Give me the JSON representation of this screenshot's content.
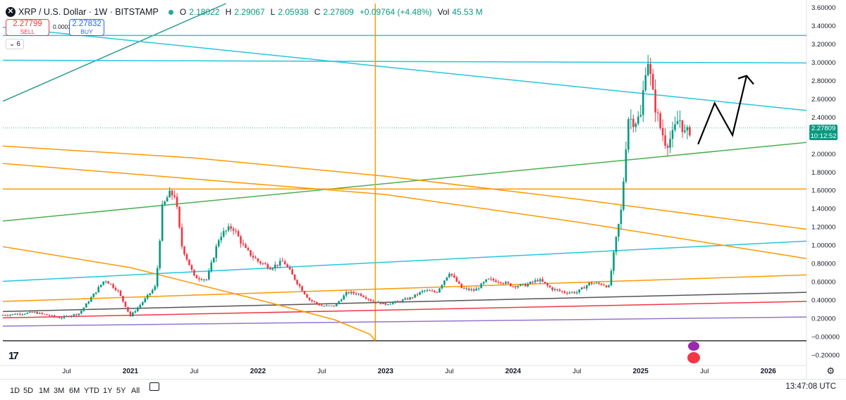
{
  "header": {
    "symbol_icon": "x-logo-icon",
    "title": "XRP / U.S. Dollar · 1W · BITSTAMP",
    "status_color": "#26a69a",
    "o_label": "O",
    "o_value": "2.18022",
    "h_label": "H",
    "h_value": "2.29067",
    "l_label": "L",
    "l_value": "2.05938",
    "c_label": "C",
    "c_value": "2.27809",
    "change": "+0.09764 (+4.48%)",
    "vol_label": "Vol",
    "vol_value": "45.53 M"
  },
  "trade": {
    "sell_price": "2.27799",
    "sell_label": "SELL",
    "spread": "0.00033",
    "buy_price": "2.27832",
    "buy_label": "BUY"
  },
  "indicators_toggle": "6",
  "current_price": {
    "value": "2.27809",
    "countdown": "10:12:52",
    "color": "#089981"
  },
  "toolbar": {
    "timeframes": [
      "1D",
      "5D",
      "1M",
      "3M",
      "6M",
      "YTD",
      "1Y",
      "5Y",
      "All"
    ],
    "clock": "13:47:08 UTC"
  },
  "chart_data": {
    "type": "line",
    "title": "",
    "y_axis": {
      "ylim": [
        -0.29,
        3.64
      ],
      "ticks": [
        "3.60000",
        "3.40000",
        "3.20000",
        "3.00000",
        "2.80000",
        "2.60000",
        "2.40000",
        "2.20000",
        "2.00000",
        "1.80000",
        "1.60000",
        "1.40000",
        "1.20000",
        "1.00000",
        "0.80000",
        "0.60000",
        "0.40000",
        "0.20000",
        "−0.00000",
        "−0.20000"
      ],
      "tick_values": [
        3.6,
        3.4,
        3.2,
        3.0,
        2.8,
        2.6,
        2.4,
        2.2,
        2.0,
        1.8,
        1.6,
        1.4,
        1.2,
        1.0,
        0.8,
        0.6,
        0.4,
        0.2,
        0.0,
        -0.2
      ]
    },
    "x_axis": {
      "xlim": [
        2020.0,
        2026.3
      ],
      "ticks": [
        "Jul",
        "2021",
        "Jul",
        "2022",
        "Jul",
        "2023",
        "Jul",
        "2024",
        "Jul",
        "2025",
        "Jul",
        "2026"
      ],
      "tick_values": [
        2020.5,
        2021.0,
        2021.5,
        2022.0,
        2022.5,
        2023.0,
        2023.5,
        2024.0,
        2024.5,
        2025.0,
        2025.5,
        2026.0
      ]
    },
    "candles": {
      "up_color": "#089981",
      "down_color": "#f23645",
      "close_path": [
        [
          2020.0,
          0.23
        ],
        [
          2020.25,
          0.26
        ],
        [
          2020.45,
          0.2
        ],
        [
          2020.6,
          0.25
        ],
        [
          2020.8,
          0.62
        ],
        [
          2020.9,
          0.5
        ],
        [
          2021.0,
          0.22
        ],
        [
          2021.1,
          0.38
        ],
        [
          2021.2,
          0.55
        ],
        [
          2021.25,
          1.4
        ],
        [
          2021.3,
          1.55
        ],
        [
          2021.35,
          1.55
        ],
        [
          2021.4,
          1.0
        ],
        [
          2021.5,
          0.65
        ],
        [
          2021.6,
          0.62
        ],
        [
          2021.7,
          1.1
        ],
        [
          2021.8,
          1.2
        ],
        [
          2021.9,
          0.95
        ],
        [
          2022.0,
          0.82
        ],
        [
          2022.1,
          0.75
        ],
        [
          2022.2,
          0.82
        ],
        [
          2022.3,
          0.6
        ],
        [
          2022.4,
          0.4
        ],
        [
          2022.5,
          0.33
        ],
        [
          2022.6,
          0.33
        ],
        [
          2022.7,
          0.48
        ],
        [
          2022.8,
          0.46
        ],
        [
          2022.9,
          0.38
        ],
        [
          2023.0,
          0.35
        ],
        [
          2023.1,
          0.38
        ],
        [
          2023.2,
          0.42
        ],
        [
          2023.3,
          0.5
        ],
        [
          2023.4,
          0.48
        ],
        [
          2023.5,
          0.7
        ],
        [
          2023.6,
          0.52
        ],
        [
          2023.7,
          0.5
        ],
        [
          2023.8,
          0.62
        ],
        [
          2023.9,
          0.6
        ],
        [
          2024.0,
          0.55
        ],
        [
          2024.1,
          0.56
        ],
        [
          2024.2,
          0.62
        ],
        [
          2024.3,
          0.52
        ],
        [
          2024.4,
          0.48
        ],
        [
          2024.5,
          0.48
        ],
        [
          2024.6,
          0.58
        ],
        [
          2024.7,
          0.57
        ],
        [
          2024.75,
          0.54
        ],
        [
          2024.8,
          1.0
        ],
        [
          2024.85,
          1.4
        ],
        [
          2024.9,
          2.4
        ],
        [
          2024.95,
          2.35
        ],
        [
          2025.0,
          2.4
        ],
        [
          2025.05,
          3.1
        ],
        [
          2025.1,
          2.6
        ],
        [
          2025.15,
          2.3
        ],
        [
          2025.2,
          2.1
        ],
        [
          2025.25,
          2.2
        ],
        [
          2025.3,
          2.4
        ],
        [
          2025.35,
          2.2
        ],
        [
          2025.4,
          2.28
        ]
      ]
    },
    "lines": [
      {
        "color": "#2a9d8f",
        "x1": 2020.0,
        "y1": 2.57,
        "x2": 2021.75,
        "y2": 3.64
      },
      {
        "color": "#26c6da",
        "x1": 2020.0,
        "y1": 3.38,
        "x2": 2026.3,
        "y2": 2.47
      },
      {
        "color": "#26c6da",
        "x1": 2020.0,
        "y1": 3.02,
        "x2": 2026.3,
        "y2": 2.99
      },
      {
        "color": "#26c6da",
        "x1": 2020.0,
        "y1": 3.29,
        "x2": 2026.3,
        "y2": 3.29
      },
      {
        "color": "#26c6da",
        "x1": 2020.0,
        "y1": 0.6,
        "x2": 2026.3,
        "y2": 1.04
      },
      {
        "color": "#4caf50",
        "x1": 2020.0,
        "y1": 1.26,
        "x2": 2026.3,
        "y2": 2.12
      },
      {
        "color": "#ff9800",
        "x1": 2020.0,
        "y1": 1.61,
        "x2": 2026.3,
        "y2": 1.61
      },
      {
        "color": "#ff9800",
        "x1": 2020.0,
        "y1": 0.38,
        "x2": 2026.3,
        "y2": 0.67
      },
      {
        "color": "#ff9800",
        "x1": 2022.92,
        "y1": 3.64,
        "x2": 2022.92,
        "y2": -0.05
      },
      {
        "color": "#555555",
        "x1": 2020.0,
        "y1": 0.27,
        "x2": 2026.3,
        "y2": 0.48
      },
      {
        "color": "#f23645",
        "x1": 2020.0,
        "y1": 0.2,
        "x2": 2026.3,
        "y2": 0.38
      },
      {
        "color": "#9575cd",
        "x1": 2020.0,
        "y1": 0.11,
        "x2": 2026.3,
        "y2": 0.21
      },
      {
        "color": "#333333",
        "x1": 2020.0,
        "y1": -0.05,
        "x2": 2026.3,
        "y2": -0.05
      }
    ],
    "curves": [
      {
        "color": "#ff9800",
        "points": [
          [
            2020.0,
            2.08
          ],
          [
            2021.5,
            1.95
          ],
          [
            2023.0,
            1.75
          ],
          [
            2024.5,
            1.5
          ],
          [
            2026.3,
            1.17
          ]
        ]
      },
      {
        "color": "#ff9800",
        "points": [
          [
            2020.0,
            1.89
          ],
          [
            2021.5,
            1.72
          ],
          [
            2023.0,
            1.55
          ],
          [
            2024.5,
            1.25
          ],
          [
            2026.3,
            0.85
          ]
        ]
      },
      {
        "color": "#ff9800",
        "points": [
          [
            2020.0,
            0.98
          ],
          [
            2021.0,
            0.75
          ],
          [
            2022.0,
            0.4
          ],
          [
            2022.6,
            0.18
          ],
          [
            2022.88,
            0.02
          ],
          [
            2022.92,
            -0.05
          ]
        ]
      }
    ],
    "projection": {
      "color": "#000000",
      "points": [
        [
          2025.45,
          2.1
        ],
        [
          2025.58,
          2.55
        ],
        [
          2025.72,
          2.2
        ],
        [
          2025.83,
          2.85
        ]
      ]
    },
    "last_price_line": 2.27809
  }
}
